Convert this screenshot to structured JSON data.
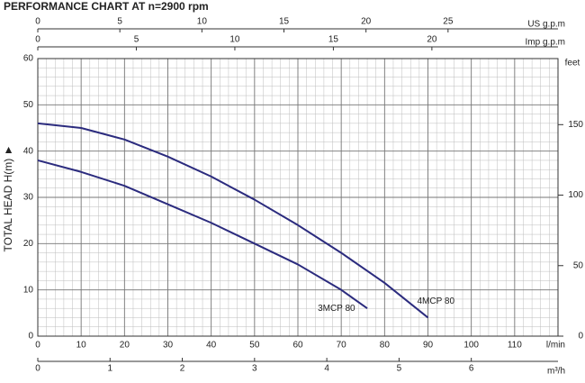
{
  "chart_data": {
    "type": "line",
    "title": "PERFORMANCE CHART AT n=2900 rpm",
    "xlabel": "l/min",
    "ylabel": "TOTAL HEAD H(m) ►",
    "y2label": "feet",
    "xlim": [
      0,
      120
    ],
    "xticks": [
      0,
      10,
      20,
      30,
      40,
      50,
      60,
      70,
      80,
      90,
      100,
      110
    ],
    "ylim": [
      0,
      60
    ],
    "yticks": [
      0,
      10,
      20,
      30,
      40,
      50,
      60
    ],
    "y2lim": [
      0,
      196.85
    ],
    "y2ticks": [
      0,
      50,
      100,
      150
    ],
    "grid": true,
    "minor_grid": 5,
    "us_gpm": {
      "label": "US g.p.m",
      "lim": [
        0,
        31.7
      ],
      "ticks": [
        0,
        5,
        10,
        15,
        20,
        25
      ]
    },
    "imp_gpm": {
      "label": "Imp g.p.m",
      "lim": [
        0,
        26.4
      ],
      "ticks": [
        0,
        5,
        10,
        15,
        20
      ]
    },
    "m3h": {
      "label": "m³/h",
      "lim": [
        0,
        7.2
      ],
      "ticks": [
        0,
        1,
        2,
        3,
        4,
        5,
        6
      ]
    },
    "series": [
      {
        "name": "4MCP 80",
        "color": "#2b2b7e",
        "x": [
          0,
          10,
          20,
          30,
          40,
          50,
          60,
          70,
          80,
          90
        ],
        "values": [
          46,
          45,
          42.5,
          38.8,
          34.5,
          29.5,
          24,
          18,
          11.5,
          4
        ]
      },
      {
        "name": "3MCP 80",
        "color": "#2b2b7e",
        "x": [
          0,
          10,
          20,
          30,
          40,
          50,
          60,
          70,
          76
        ],
        "values": [
          38,
          35.5,
          32.5,
          28.5,
          24.5,
          20,
          15.5,
          10,
          6
        ]
      }
    ]
  }
}
